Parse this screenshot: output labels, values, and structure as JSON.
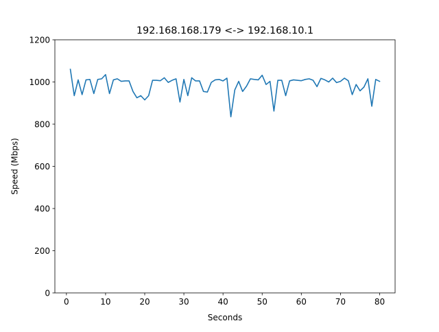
{
  "chart_data": {
    "type": "line",
    "title": "192.168.168.179 <-> 192.168.10.1",
    "xlabel": "Seconds",
    "ylabel": "Speed (Mbps)",
    "xlim": [
      -2.95,
      83.95
    ],
    "ylim": [
      0,
      1200
    ],
    "xticks": [
      0,
      10,
      20,
      30,
      40,
      50,
      60,
      70,
      80
    ],
    "yticks": [
      0,
      200,
      400,
      600,
      800,
      1000,
      1200
    ],
    "grid": false,
    "legend": "none",
    "series": [
      {
        "color": "#1f77b4",
        "x": [
          1,
          2,
          3,
          4,
          5,
          6,
          7,
          8,
          9,
          10,
          11,
          12,
          13,
          14,
          15,
          16,
          17,
          18,
          19,
          20,
          21,
          22,
          23,
          24,
          25,
          26,
          27,
          28,
          29,
          30,
          31,
          32,
          33,
          34,
          35,
          36,
          37,
          38,
          39,
          40,
          41,
          42,
          43,
          44,
          45,
          46,
          47,
          48,
          49,
          50,
          51,
          52,
          53,
          54,
          55,
          56,
          57,
          58,
          59,
          60,
          61,
          62,
          63,
          64,
          65,
          66,
          67,
          68,
          69,
          70,
          71,
          72,
          73,
          74,
          75,
          76,
          77,
          78,
          79,
          80
        ],
        "values": [
          1060,
          935,
          1010,
          940,
          1010,
          1012,
          945,
          1012,
          1015,
          1035,
          945,
          1010,
          1015,
          1003,
          1005,
          1005,
          955,
          925,
          935,
          915,
          935,
          1008,
          1008,
          1006,
          1020,
          998,
          1008,
          1015,
          905,
          1012,
          935,
          1020,
          1005,
          1005,
          955,
          952,
          998,
          1010,
          1012,
          1005,
          1018,
          835,
          962,
          1003,
          955,
          980,
          1015,
          1012,
          1010,
          1032,
          988,
          1003,
          862,
          1008,
          1008,
          935,
          1005,
          1010,
          1008,
          1006,
          1012,
          1015,
          1008,
          978,
          1017,
          1010,
          1000,
          1018,
          997,
          1003,
          1018,
          1006,
          940,
          988,
          958,
          976,
          1015,
          885,
          1012,
          1003
        ]
      }
    ]
  }
}
